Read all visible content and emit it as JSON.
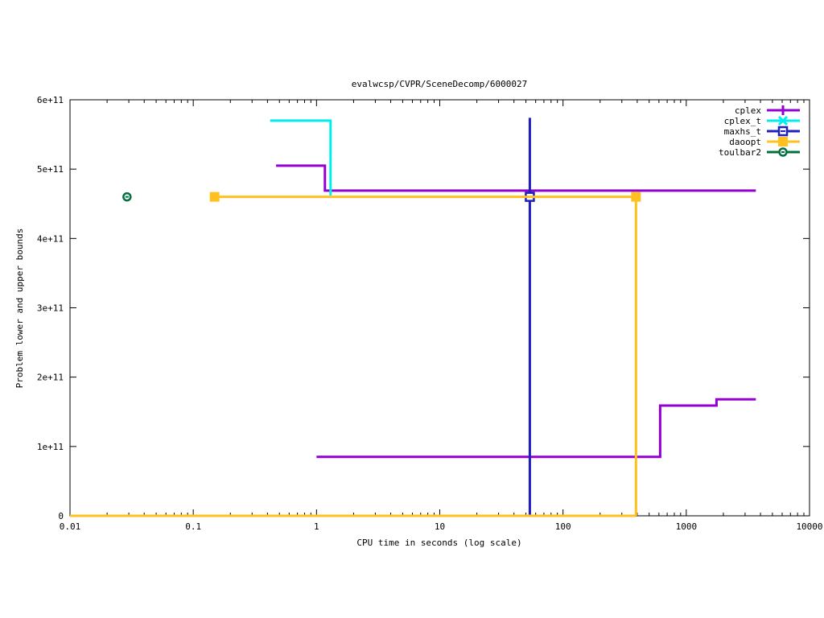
{
  "chart_data": {
    "type": "line",
    "title": "evalwcsp/CVPR/SceneDecomp/6000027",
    "xlabel": "CPU time in seconds (log scale)",
    "ylabel": "Problem lower and upper bounds",
    "xscale": "log",
    "xlim": [
      0.01,
      10000
    ],
    "ylim": [
      0,
      600000000000.0
    ],
    "xticks": [
      0.01,
      0.1,
      1,
      10,
      100,
      1000,
      10000
    ],
    "xtick_labels": [
      "0.01",
      "0.1",
      "1",
      "10",
      "100",
      "1000",
      "10000"
    ],
    "yticks": [
      0,
      100000000000.0,
      200000000000.0,
      300000000000.0,
      400000000000.0,
      500000000000.0,
      600000000000.0
    ],
    "ytick_labels": [
      "0",
      "1e+11",
      "2e+11",
      "3e+11",
      "4e+11",
      "5e+11",
      "6e+11"
    ],
    "grid": false,
    "legend_placement": "top-right",
    "series": [
      {
        "name": "cplex",
        "color": "#9400d3",
        "marker": "plus",
        "segments": [
          [
            [
              0.47,
              505000000000.0
            ],
            [
              1.17,
              505000000000.0
            ],
            [
              1.17,
              469000000000.0
            ],
            [
              3670,
              469000000000.0
            ]
          ],
          [
            [
              1.0,
              85000000000.0
            ],
            [
              614,
              85000000000.0
            ],
            [
              614,
              159000000000.0
            ],
            [
              1760,
              159000000000.0
            ],
            [
              1760,
              168000000000.0
            ],
            [
              3670,
              168000000000.0
            ]
          ]
        ],
        "points": []
      },
      {
        "name": "cplex_t",
        "color": "#00eeee",
        "marker": "cross",
        "segments": [
          [
            [
              0.42,
              570000000000.0
            ],
            [
              1.3,
              570000000000.0
            ],
            [
              1.3,
              462000000000.0
            ]
          ]
        ],
        "points": []
      },
      {
        "name": "maxhs_t",
        "color": "#2020c0",
        "marker": "square-open",
        "segments": [
          [
            [
              53.8,
              574000000000.0
            ],
            [
              53.8,
              0
            ]
          ]
        ],
        "points": [
          [
            53.8,
            460000000000.0
          ]
        ]
      },
      {
        "name": "daoopt",
        "color": "#ffc020",
        "marker": "square-filled",
        "segments": [
          [
            [
              0.149,
              460000000000.0
            ],
            [
              391,
              460000000000.0
            ],
            [
              391,
              0
            ]
          ],
          [
            [
              0.01,
              0
            ],
            [
              391,
              0
            ]
          ]
        ],
        "points": [
          [
            0.149,
            460000000000.0
          ],
          [
            391,
            460000000000.0
          ]
        ]
      },
      {
        "name": "toulbar2",
        "color": "#007040",
        "marker": "circle-open",
        "segments": [],
        "points": [
          [
            0.029,
            460000000000.0
          ]
        ]
      }
    ]
  }
}
